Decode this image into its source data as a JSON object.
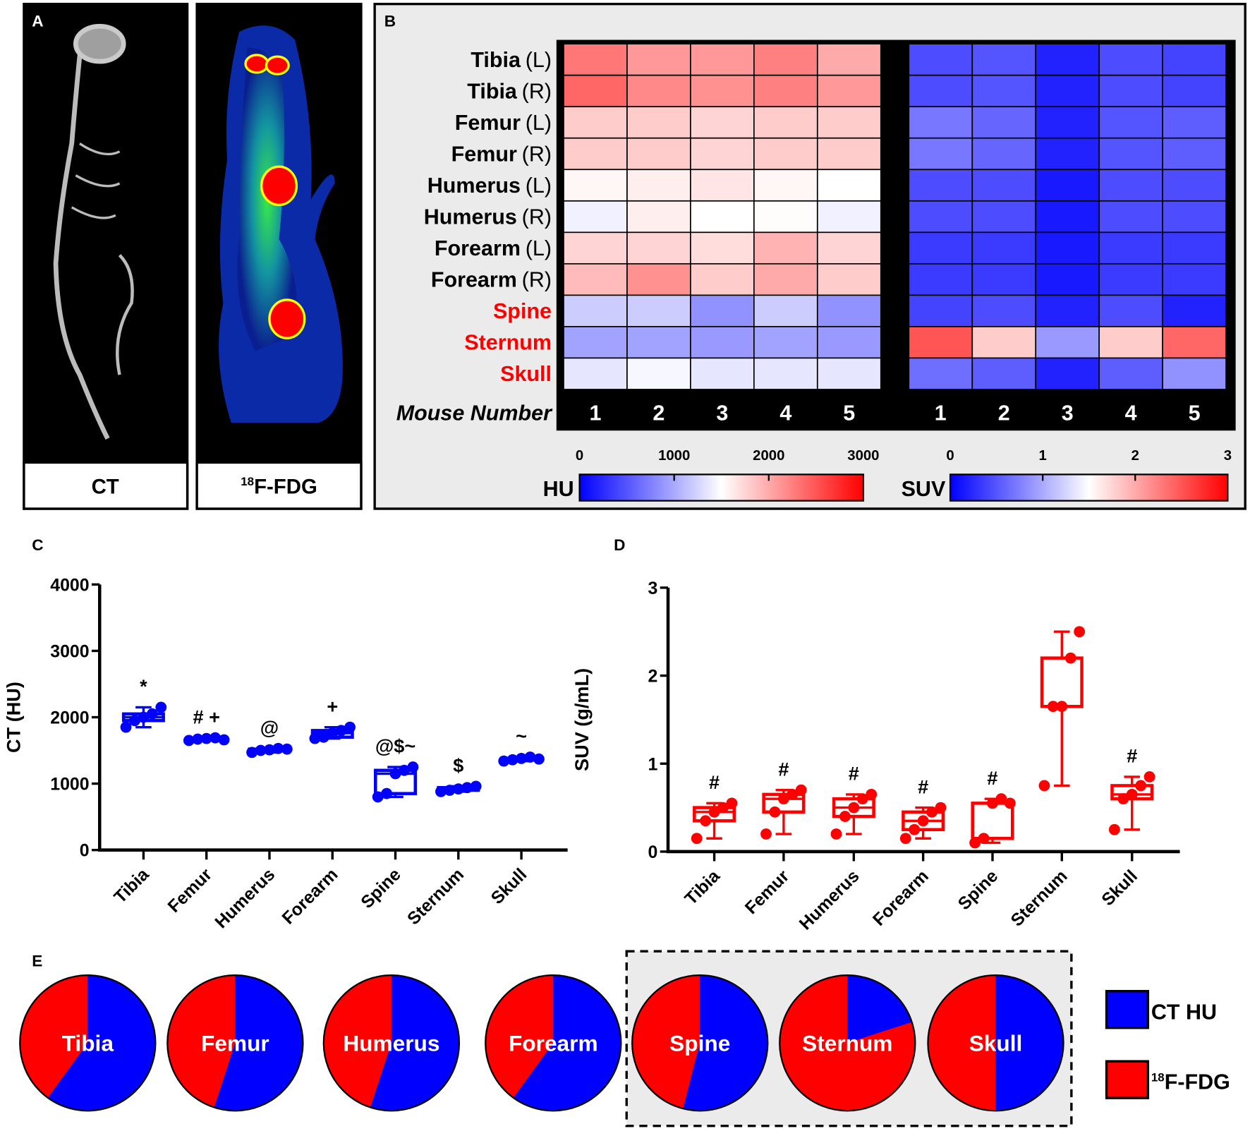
{
  "panel_labels": {
    "a": "A",
    "b": "B",
    "c": "C",
    "d": "D",
    "e": "E"
  },
  "panel_a": {
    "ct_label": "CT",
    "pet_label_sup": "18",
    "pet_label": "F-FDG"
  },
  "colors": {
    "blue": "#0000ff",
    "red": "#ff0000",
    "white": "#ffffff",
    "box_gray": "#ebebeb"
  },
  "chart_data": [
    {
      "type": "heatmap",
      "id": "hu-heatmap",
      "rows": [
        {
          "name": "Tibia",
          "side": "(L)",
          "highlight": false
        },
        {
          "name": "Tibia",
          "side": "(R)",
          "highlight": false
        },
        {
          "name": "Femur",
          "side": "(L)",
          "highlight": false
        },
        {
          "name": "Femur",
          "side": "(R)",
          "highlight": false
        },
        {
          "name": "Humerus",
          "side": "(L)",
          "highlight": false
        },
        {
          "name": "Humerus",
          "side": "(R)",
          "highlight": false
        },
        {
          "name": "Forearm",
          "side": "(L)",
          "highlight": false
        },
        {
          "name": "Forearm",
          "side": "(R)",
          "highlight": false
        },
        {
          "name": "Spine",
          "side": "",
          "highlight": true
        },
        {
          "name": "Sternum",
          "side": "",
          "highlight": true
        },
        {
          "name": "Skull",
          "side": "",
          "highlight": true
        }
      ],
      "xlabel": "Mouse Number",
      "columns": [
        "1",
        "2",
        "3",
        "4",
        "5"
      ],
      "values": [
        [
          2300,
          2100,
          2100,
          2250,
          2000
        ],
        [
          2400,
          2200,
          2150,
          2250,
          2100
        ],
        [
          1800,
          1800,
          1750,
          1800,
          1800
        ],
        [
          1800,
          1800,
          1750,
          1800,
          1800
        ],
        [
          1550,
          1600,
          1650,
          1550,
          1500
        ],
        [
          1420,
          1600,
          1500,
          1520,
          1420
        ],
        [
          1750,
          1750,
          1700,
          1950,
          1750
        ],
        [
          1900,
          2150,
          1800,
          2000,
          1800
        ],
        [
          1200,
          1200,
          850,
          1200,
          850
        ],
        [
          950,
          950,
          900,
          950,
          900
        ],
        [
          1350,
          1450,
          1350,
          1350,
          1350
        ]
      ],
      "colorbar": {
        "label": "HU",
        "range": [
          0,
          3000
        ],
        "ticks": [
          "0",
          "1000",
          "2000",
          "3000"
        ]
      }
    },
    {
      "type": "heatmap",
      "id": "suv-heatmap",
      "columns": [
        "1",
        "2",
        "3",
        "4",
        "5"
      ],
      "values": [
        [
          0.45,
          0.5,
          0.2,
          0.45,
          0.4
        ],
        [
          0.45,
          0.5,
          0.2,
          0.45,
          0.4
        ],
        [
          0.7,
          0.6,
          0.2,
          0.5,
          0.55
        ],
        [
          0.7,
          0.6,
          0.2,
          0.5,
          0.55
        ],
        [
          0.45,
          0.45,
          0.15,
          0.45,
          0.45
        ],
        [
          0.45,
          0.45,
          0.15,
          0.45,
          0.45
        ],
        [
          0.35,
          0.35,
          0.15,
          0.35,
          0.35
        ],
        [
          0.35,
          0.35,
          0.15,
          0.35,
          0.35
        ],
        [
          0.4,
          0.45,
          0.2,
          0.45,
          0.2
        ],
        [
          2.5,
          1.8,
          0.9,
          1.8,
          2.4
        ],
        [
          0.65,
          0.55,
          0.2,
          0.55,
          0.85
        ]
      ],
      "colorbar": {
        "label": "SUV",
        "range": [
          0,
          3
        ],
        "ticks": [
          "0",
          "1",
          "2",
          "3"
        ]
      }
    },
    {
      "type": "box",
      "id": "ct-boxplot",
      "ylabel": "CT (HU)",
      "ylim": [
        0,
        4000
      ],
      "yticks": [
        "0",
        "1000",
        "2000",
        "3000",
        "4000"
      ],
      "color": "#0000ff",
      "categories": [
        "Tibia",
        "Femur",
        "Humerus",
        "Forearm",
        "Spine",
        "Sternum",
        "Skull"
      ],
      "points": [
        [
          1850,
          1950,
          2000,
          2050,
          2150
        ],
        [
          1650,
          1670,
          1680,
          1690,
          1660
        ],
        [
          1470,
          1500,
          1510,
          1530,
          1520
        ],
        [
          1680,
          1700,
          1760,
          1800,
          1850
        ],
        [
          800,
          850,
          1150,
          1200,
          1250
        ],
        [
          880,
          900,
          920,
          940,
          960
        ],
        [
          1340,
          1360,
          1380,
          1400,
          1370
        ]
      ],
      "annotations": [
        "*",
        "# +",
        "@",
        "+",
        "@$~",
        "$",
        "~"
      ]
    },
    {
      "type": "box",
      "id": "suv-boxplot",
      "ylabel": "SUV (g/mL)",
      "ylim": [
        0,
        3
      ],
      "yticks": [
        "0",
        "1",
        "2",
        "3"
      ],
      "color": "#ff0000",
      "categories": [
        "Tibia",
        "Femur",
        "Humerus",
        "Forearm",
        "Spine",
        "Sternum",
        "Skull"
      ],
      "points": [
        [
          0.15,
          0.35,
          0.45,
          0.5,
          0.55
        ],
        [
          0.2,
          0.45,
          0.6,
          0.65,
          0.7
        ],
        [
          0.2,
          0.4,
          0.5,
          0.6,
          0.65
        ],
        [
          0.15,
          0.25,
          0.35,
          0.45,
          0.5
        ],
        [
          0.1,
          0.15,
          0.55,
          0.6,
          0.55
        ],
        [
          0.75,
          1.65,
          1.65,
          2.2,
          2.5
        ],
        [
          0.25,
          0.6,
          0.65,
          0.75,
          0.85
        ]
      ],
      "annotations": [
        "#",
        "#",
        "#",
        "#",
        "#",
        "",
        "#"
      ]
    },
    {
      "type": "pie",
      "id": "ct-vs-fdg-pies",
      "pies": [
        {
          "label": "Tibia",
          "ct_fraction": 0.6
        },
        {
          "label": "Femur",
          "ct_fraction": 0.55
        },
        {
          "label": "Humerus",
          "ct_fraction": 0.55
        },
        {
          "label": "Forearm",
          "ct_fraction": 0.6
        },
        {
          "label": "Spine",
          "ct_fraction": 0.54
        },
        {
          "label": "Sternum",
          "ct_fraction": 0.2
        },
        {
          "label": "Skull",
          "ct_fraction": 0.5
        }
      ],
      "highlighted_group": [
        "Spine",
        "Sternum",
        "Skull"
      ],
      "legend": {
        "ct": "CT HU",
        "fdg_sup": "18",
        "fdg": "F-FDG"
      }
    }
  ]
}
